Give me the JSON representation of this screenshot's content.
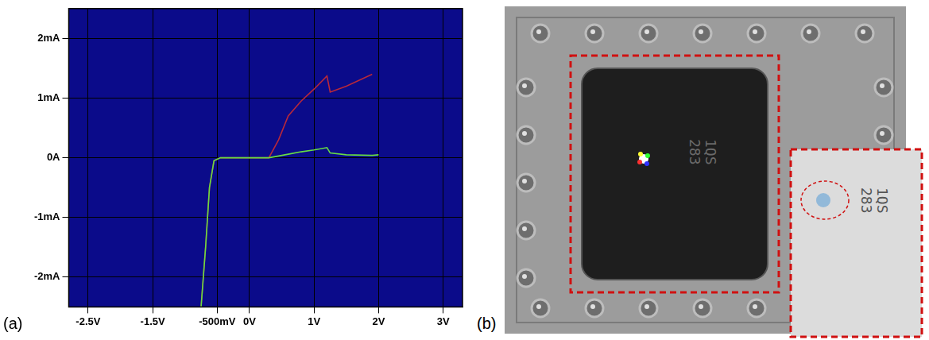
{
  "chart_data": {
    "type": "line",
    "x": [
      -0.75,
      -0.68,
      -0.62,
      -0.55,
      -0.45,
      0,
      0.3,
      0.45,
      0.6,
      0.8,
      1.0,
      1.2,
      1.25,
      1.5,
      1.9,
      2.0
    ],
    "series": [
      {
        "color": "#66dd44",
        "values": [
          -2.5,
          -1.5,
          -0.5,
          -0.05,
          0,
          0,
          0,
          0.03,
          0.06,
          0.1,
          0.13,
          0.17,
          0.08,
          0.05,
          0.04,
          0.05
        ]
      },
      {
        "color": "#b8283a",
        "values": [
          -2.5,
          -1.5,
          -0.5,
          -0.05,
          0,
          0,
          0,
          0.3,
          0.7,
          0.95,
          1.15,
          1.37,
          1.1,
          1.2,
          1.4,
          null
        ]
      }
    ],
    "xlim": [
      -2.8,
      3.3
    ],
    "xticks": [
      {
        "value": -2.5,
        "label": "-2.5V"
      },
      {
        "value": -1.5,
        "label": "-1.5V"
      },
      {
        "value": -0.5,
        "label": "-500mV"
      },
      {
        "value": 0,
        "label": "0V"
      },
      {
        "value": 1,
        "label": "1V"
      },
      {
        "value": 2,
        "label": "2V"
      },
      {
        "value": 3,
        "label": "3V"
      }
    ],
    "ylim": [
      -2.5,
      2.5
    ],
    "yticks": [
      {
        "value": -2,
        "label": "-2mA"
      },
      {
        "value": -1,
        "label": "-1mA"
      },
      {
        "value": 0,
        "label": "0A"
      },
      {
        "value": 1,
        "label": "1mA"
      },
      {
        "value": 2,
        "label": "2mA"
      }
    ],
    "grid": true
  },
  "panels": [
    "(a)",
    "(b)"
  ],
  "photo": {
    "markings": [
      "283",
      "1QS"
    ]
  }
}
